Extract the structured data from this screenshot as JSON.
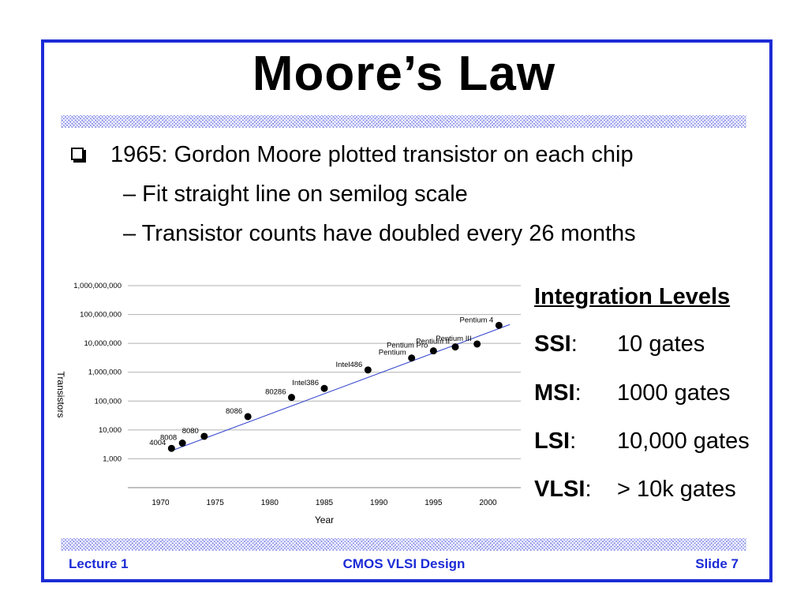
{
  "slide": {
    "title": "Moore’s Law",
    "bullets": [
      "1965: Gordon Moore plotted transistor on each chip",
      "– Fit straight line on semilog scale",
      "– Transistor counts have doubled every 26 months"
    ],
    "integration": {
      "heading": "Integration Levels",
      "levels": [
        {
          "abbr": "SSI",
          "sep": ":",
          "value": "10 gates"
        },
        {
          "abbr": "MSI",
          "sep": ":",
          "value": "1000 gates"
        },
        {
          "abbr": "LSI",
          "sep": ":",
          "value": "10,000 gates"
        },
        {
          "abbr": "VLSI",
          "sep": ":",
          "value": "> 10k gates"
        }
      ]
    },
    "footer": {
      "left": "Lecture 1",
      "center": "CMOS VLSI Design",
      "right": "Slide 7"
    },
    "colors": {
      "frame": "#1c2bd6",
      "footer_text": "#1c2bd6",
      "trend_line": "#3344cc"
    }
  },
  "chart_data": {
    "type": "scatter",
    "xlabel": "Year",
    "ylabel": "Transistors",
    "yscale": "log",
    "xlim": [
      1967,
      2003
    ],
    "ylim": [
      100,
      1000000000
    ],
    "xticks": [
      1970,
      1975,
      1980,
      1985,
      1990,
      1995,
      2000
    ],
    "xtick_labels": [
      "1970",
      "1975",
      "1980",
      "1985",
      "1990",
      "1995",
      "2000"
    ],
    "yticks": [
      1000,
      10000,
      100000,
      1000000,
      10000000,
      100000000,
      1000000000
    ],
    "ytick_labels": [
      "1,000",
      "10,000",
      "100,000",
      "1,000,000",
      "10,000,000",
      "100,000,000",
      "1,000,000,000"
    ],
    "grid": "horizontal",
    "points": [
      {
        "label": "4004",
        "x": 1971,
        "y": 2300
      },
      {
        "label": "8008",
        "x": 1972,
        "y": 3500
      },
      {
        "label": "8080",
        "x": 1974,
        "y": 6000
      },
      {
        "label": "8086",
        "x": 1978,
        "y": 29000
      },
      {
        "label": "80286",
        "x": 1982,
        "y": 134000
      },
      {
        "label": "Intel386",
        "x": 1985,
        "y": 275000
      },
      {
        "label": "Intel486",
        "x": 1989,
        "y": 1200000
      },
      {
        "label": "Pentium",
        "x": 1993,
        "y": 3100000
      },
      {
        "label": "Pentium Pro",
        "x": 1995,
        "y": 5500000
      },
      {
        "label": "Pentium II",
        "x": 1997,
        "y": 7500000
      },
      {
        "label": "Pentium III",
        "x": 1999,
        "y": 9500000
      },
      {
        "label": "Pentium 4",
        "x": 2001,
        "y": 42000000
      }
    ],
    "trend_line": {
      "x": [
        1971,
        2002
      ],
      "y": [
        1900,
        45000000
      ]
    }
  }
}
